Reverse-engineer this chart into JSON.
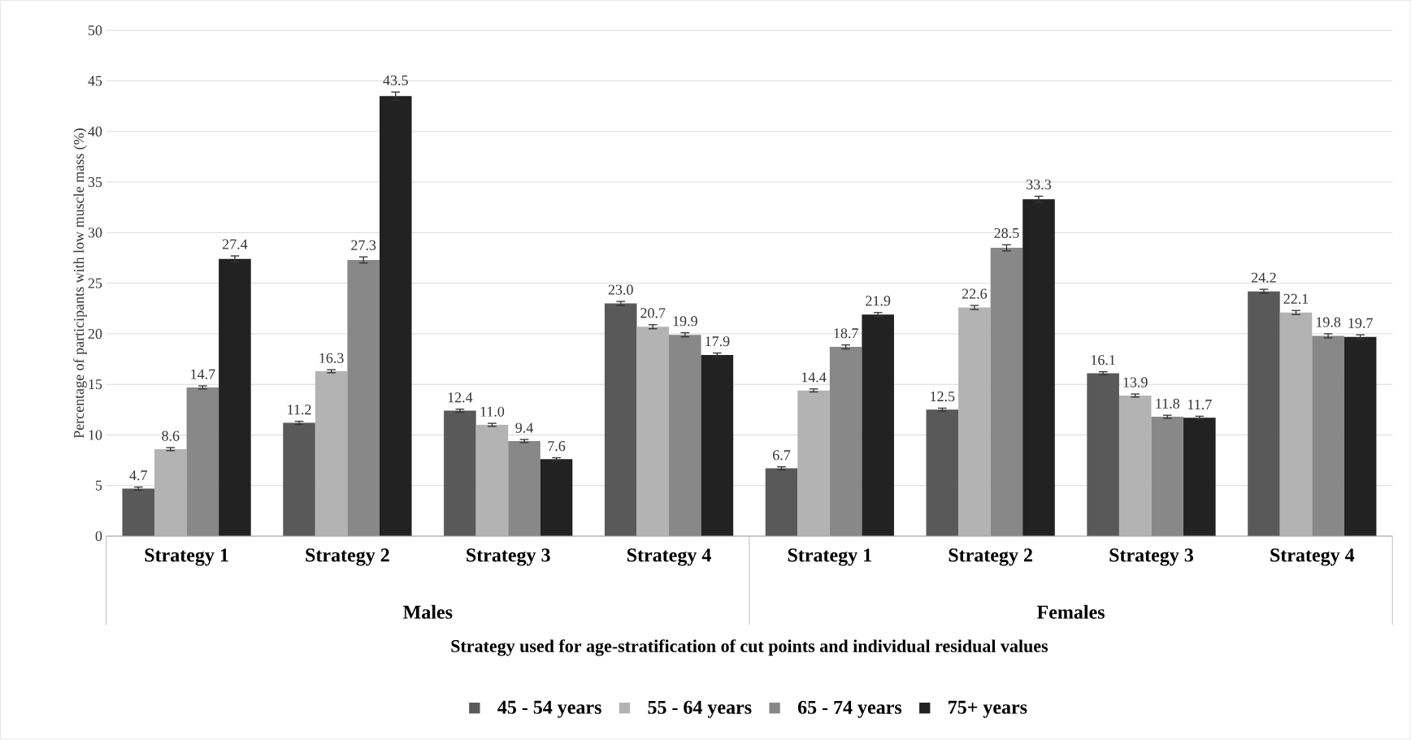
{
  "chart_data": {
    "type": "bar",
    "ylabel": "Percentage of participants with low muscle mass (%)",
    "xlabel": "Strategy used for age-stratification of cut points and individual residual values",
    "categories": [
      "Strategy 1",
      "Strategy 2",
      "Strategy 3",
      "Strategy 4",
      "Strategy 1",
      "Strategy 2",
      "Strategy 3",
      "Strategy 4"
    ],
    "annotations": [
      "Males",
      "Females"
    ],
    "ylim": [
      0,
      50
    ],
    "yticks": [
      0,
      5,
      10,
      15,
      20,
      25,
      30,
      35,
      40,
      45,
      50
    ],
    "grid": "y",
    "legend": "bottom",
    "series": [
      {
        "name": "45 - 54 years",
        "color": "#595959",
        "values": [
          4.7,
          11.2,
          12.4,
          23.0,
          6.7,
          12.5,
          16.1,
          24.2
        ],
        "errors": [
          0.15,
          0.15,
          0.15,
          0.2,
          0.15,
          0.15,
          0.15,
          0.2
        ],
        "value_labels": [
          "4.7",
          "11.2",
          "12.4",
          "23.0",
          "6.7",
          "12.5",
          "16.1",
          "24.2"
        ]
      },
      {
        "name": "55 - 64 years",
        "color": "#b3b3b3",
        "values": [
          8.6,
          16.3,
          11.0,
          20.7,
          14.4,
          22.6,
          13.9,
          22.1
        ],
        "errors": [
          0.15,
          0.15,
          0.15,
          0.2,
          0.15,
          0.2,
          0.15,
          0.2
        ],
        "value_labels": [
          "8.6",
          "16.3",
          "11.0",
          "20.7",
          "14.4",
          "22.6",
          "13.9",
          "22.1"
        ]
      },
      {
        "name": "65 - 74 years",
        "color": "#888888",
        "values": [
          14.7,
          27.3,
          9.4,
          19.9,
          18.7,
          28.5,
          11.8,
          19.8
        ],
        "errors": [
          0.15,
          0.3,
          0.15,
          0.2,
          0.2,
          0.3,
          0.15,
          0.2
        ],
        "value_labels": [
          "14.7",
          "27.3",
          "9.4",
          "19.9",
          "18.7",
          "28.5",
          "11.8",
          "19.8"
        ]
      },
      {
        "name": "75+ years",
        "color": "#222222",
        "values": [
          27.4,
          43.5,
          7.6,
          17.9,
          21.9,
          33.3,
          11.7,
          19.7
        ],
        "errors": [
          0.3,
          0.4,
          0.15,
          0.2,
          0.2,
          0.3,
          0.15,
          0.2
        ],
        "value_labels": [
          "27.4",
          "43.5",
          "7.6",
          "17.9",
          "21.9",
          "33.3",
          "11.7",
          "19.7"
        ]
      }
    ]
  }
}
